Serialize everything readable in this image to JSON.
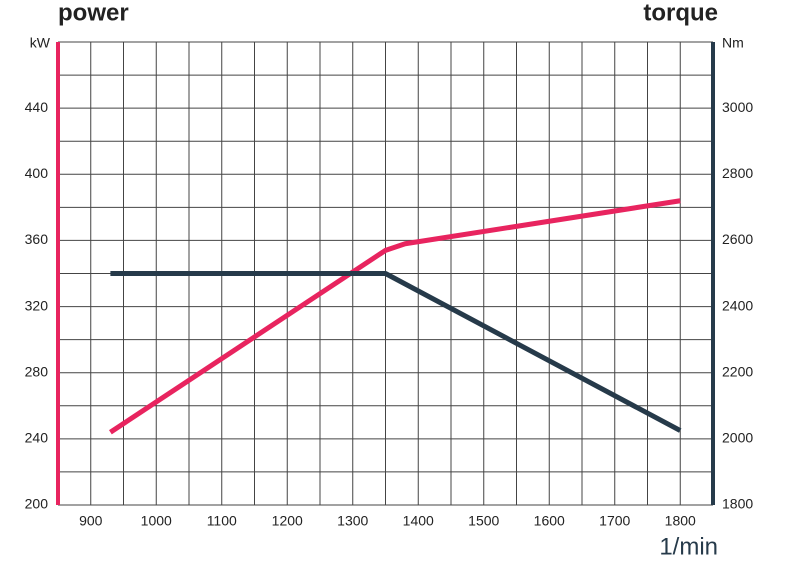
{
  "chart_data": {
    "type": "line",
    "title": "power",
    "y2_title": "torque",
    "y_unit": "kW",
    "y2_unit": "Nm",
    "x_label": "1/min",
    "xlim": [
      850,
      1850
    ],
    "xticks": [
      900,
      1000,
      1100,
      1200,
      1300,
      1400,
      1500,
      1600,
      1700,
      1800
    ],
    "ylim": [
      200,
      480
    ],
    "yticks": [
      200,
      240,
      280,
      320,
      360,
      400,
      440
    ],
    "y2lim": [
      1800,
      3200
    ],
    "y2ticks": [
      1800,
      2000,
      2200,
      2400,
      2600,
      2800,
      3000
    ],
    "xgrid": [
      850,
      900,
      950,
      1000,
      1050,
      1100,
      1150,
      1200,
      1250,
      1300,
      1350,
      1400,
      1450,
      1500,
      1550,
      1600,
      1650,
      1700,
      1750,
      1800,
      1850
    ],
    "ygrid": [
      200,
      220,
      240,
      260,
      280,
      300,
      320,
      340,
      360,
      380,
      400,
      420,
      440,
      460,
      480
    ],
    "grid": true,
    "y_color": "#e8245f",
    "y2_color": "#263a4a",
    "series": [
      {
        "name": "power",
        "color": "#e8245f",
        "x": [
          930,
          1350,
          1380,
          1800
        ],
        "values": [
          244,
          354,
          358,
          384
        ]
      },
      {
        "name": "torque",
        "color": "#263a4a",
        "axis": "y2",
        "x": [
          930,
          1350,
          1800
        ],
        "values": [
          2500,
          2500,
          2025
        ]
      }
    ]
  }
}
